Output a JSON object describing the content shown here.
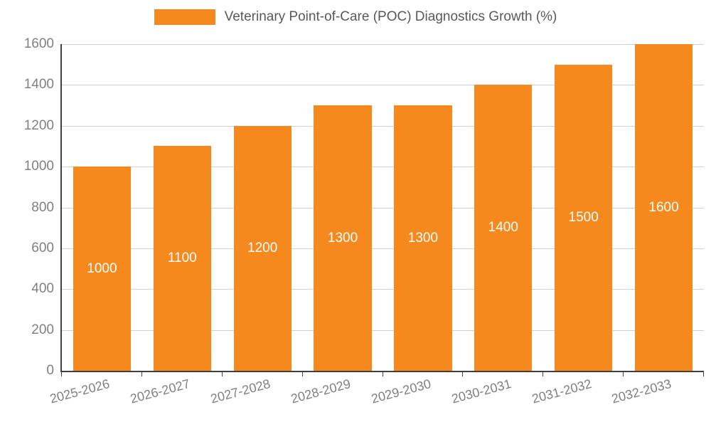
{
  "chart_data": {
    "type": "bar",
    "title": "Veterinary Point-of-Care (POC) Diagnostics Growth (%)",
    "categories": [
      "2025-2026",
      "2026-2027",
      "2027-2028",
      "2028-2029",
      "2029-2030",
      "2030-2031",
      "2031-2032",
      "2032-2033"
    ],
    "values": [
      1000,
      1100,
      1200,
      1300,
      1300,
      1400,
      1500,
      1600
    ],
    "bar_value_labels": [
      "1000",
      "1100",
      "1200",
      "1300",
      "1300",
      "1400",
      "1500",
      "1600"
    ],
    "xlabel": "",
    "ylabel": "",
    "ylim": [
      0,
      1600
    ],
    "yticks": [
      0,
      200,
      400,
      600,
      800,
      1000,
      1200,
      1400,
      1600
    ],
    "grid": true,
    "legend_position": "top-center",
    "colors": {
      "bar": "#F5891E",
      "bar_value_text": "#FFFFFF",
      "title_text": "#595959",
      "axis_text": "#808080",
      "gridline": "#D0D0D0",
      "axis_line": "#404040",
      "background": "#FFFFFF"
    }
  }
}
